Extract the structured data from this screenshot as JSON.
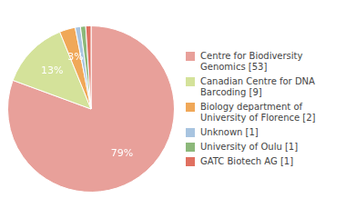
{
  "chart_data": {
    "type": "pie",
    "categories": [
      "Centre for Biodiversity\nGenomics [53]",
      "Canadian Centre for DNA\nBarcoding [9]",
      "Biology department of\nUniversity of Florence [2]",
      "Unknown [1]",
      "University of Oulu [1]",
      "GATC Biotech AG [1]"
    ],
    "values": [
      79,
      13,
      3,
      1,
      1,
      1
    ],
    "value_labels": [
      "79%",
      "13%",
      "3%",
      null,
      null,
      null
    ],
    "data_labels": true,
    "colors": [
      "#e8a09a",
      "#d4e29a",
      "#f0a858",
      "#a8c4e0",
      "#8cb87a",
      "#e07060"
    ],
    "legend": "right"
  }
}
